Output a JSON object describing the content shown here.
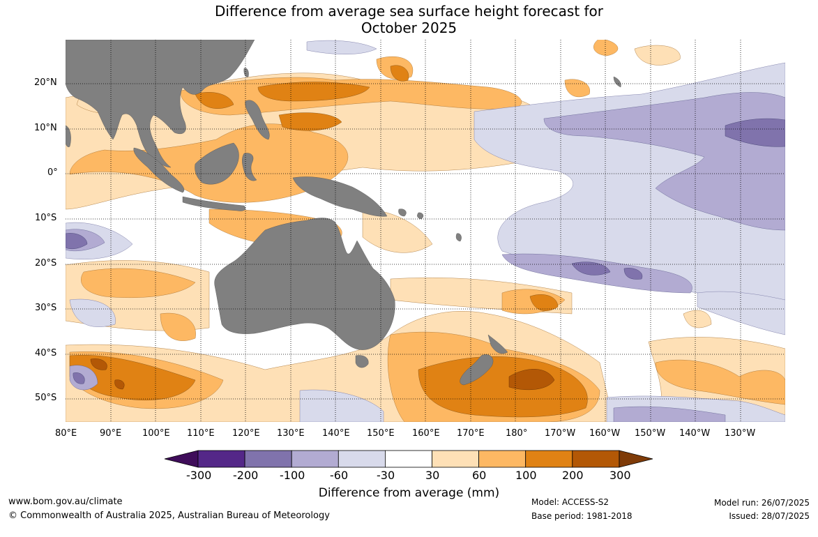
{
  "title": {
    "line1": "Difference from average sea surface height forecast for",
    "line2": "October 2025"
  },
  "map": {
    "lat_labels": [
      "20°N",
      "10°N",
      "0°",
      "10°S",
      "20°S",
      "30°S",
      "40°S",
      "50°S"
    ],
    "lon_labels": [
      "80°E",
      "90°E",
      "100°E",
      "110°E",
      "120°E",
      "130°E",
      "140°E",
      "150°E",
      "160°E",
      "170°E",
      "180°",
      "170°W",
      "160°W",
      "150°W",
      "140°W",
      "130°W"
    ],
    "land_color": "#808080"
  },
  "colorbar": {
    "colors": [
      "#3f0d5a",
      "#542788",
      "#8073ac",
      "#b2abd2",
      "#d8daeb",
      "#ffffff",
      "#fee0b6",
      "#fdb863",
      "#e08214",
      "#b35806",
      "#7f3b08"
    ],
    "ticks": [
      "-300",
      "-200",
      "-100",
      "-60",
      "-30",
      "30",
      "60",
      "100",
      "200",
      "300"
    ],
    "label": "Difference from average (mm)"
  },
  "footer": {
    "url": "www.bom.gov.au/climate",
    "copyright": "© Commonwealth of Australia 2025, Australian Bureau of Meteorology",
    "model": "Model: ACCESS-S2",
    "base_period": "Base period: 1981-2018",
    "model_run": "Model run: 26/07/2025",
    "issued": "Issued: 28/07/2025"
  }
}
